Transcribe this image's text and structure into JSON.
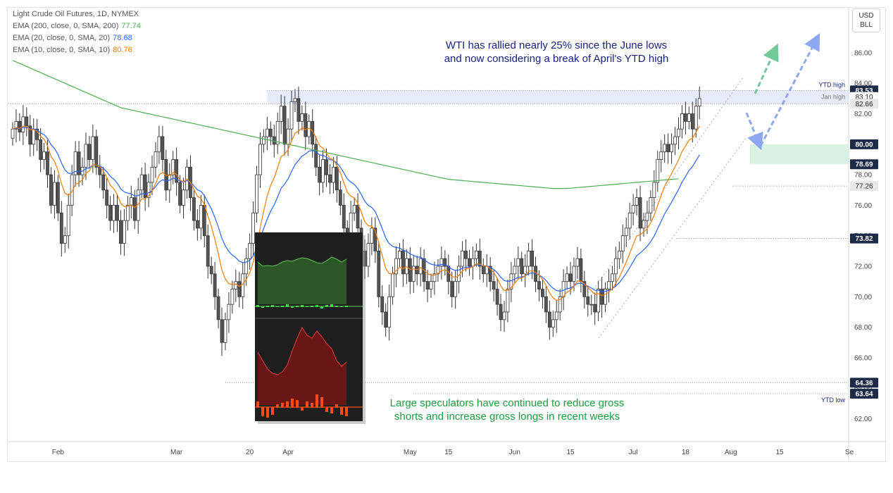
{
  "header": {
    "title": "Light Crude Oil Futures, 1D, NYMEX",
    "ema200": {
      "label": "EMA (200, close, 0, SMA, 200)",
      "value": "77.74",
      "color": "#4caf50"
    },
    "ema20": {
      "label": "EMA (20, close, 0, SMA, 20)",
      "value": "78.68",
      "color": "#2962ff"
    },
    "ema10": {
      "label": "EMA (10, close, 0, SMA, 10)",
      "value": "80.76",
      "color": "#f57c00"
    }
  },
  "currency": {
    "line1": "USD",
    "line2": "BLL"
  },
  "annotations": {
    "top_line1": "WTI has rallied nearly 25% since the June lows",
    "top_line2": "and now considering a break of April's YTD high",
    "bottom_line1": "Large speculators have continued to reduce gross",
    "bottom_line2": "shorts and increase gross longs in recent weeks",
    "ytd_high": "YTD high",
    "jan_high": "Jan high",
    "ytd_low": "YTD low"
  },
  "chart_data": {
    "type": "candlestick",
    "title": "Light Crude Oil Futures, 1D, NYMEX",
    "ylim": [
      60.5,
      89
    ],
    "y_ticks": [
      62,
      64,
      66,
      68,
      70,
      72,
      74,
      76,
      78,
      80,
      82,
      84,
      86
    ],
    "y_tick_labels": [
      "62.00",
      "64.00",
      "66.00",
      "68.00",
      "70.00",
      "72.00",
      "74.00",
      "76.00",
      "78.00",
      "80.00",
      "82.00",
      "84.00",
      "86.00"
    ],
    "x_labels": [
      {
        "label": "Feb",
        "bar": 13
      },
      {
        "label": "Mar",
        "bar": 47
      },
      {
        "label": "20",
        "bar": 68
      },
      {
        "label": "Apr",
        "bar": 79
      },
      {
        "label": "May",
        "bar": 114
      },
      {
        "label": "15",
        "bar": 125
      },
      {
        "label": "Jun",
        "bar": 144
      },
      {
        "label": "15",
        "bar": 160
      },
      {
        "label": "Jul",
        "bar": 178
      },
      {
        "label": "18",
        "bar": 193
      },
      {
        "label": "Aug",
        "bar": 206
      },
      {
        "label": "15",
        "bar": 220
      },
      {
        "label": "Se",
        "bar": 240
      }
    ],
    "price_labels": [
      {
        "text": "83.53",
        "value": 83.53,
        "style": "dark"
      },
      {
        "text": "83.10",
        "value": 83.1,
        "style": "plain"
      },
      {
        "text": "82.66",
        "value": 82.66,
        "style": "grey"
      },
      {
        "text": "80.00",
        "value": 80.0,
        "style": "dark"
      },
      {
        "text": "78.69",
        "value": 78.69,
        "style": "dark"
      },
      {
        "text": "77.26",
        "value": 77.26,
        "style": "grey"
      },
      {
        "text": "73.82",
        "value": 73.82,
        "style": "dark"
      },
      {
        "text": "64.36",
        "value": 64.36,
        "style": "dark"
      },
      {
        "text": "63.64",
        "value": 63.64,
        "style": "dark"
      }
    ],
    "levels": {
      "ytd_high": 83.53,
      "jan_high": 82.66,
      "ytd_low": 63.64,
      "zone": [
        78.69,
        80.0
      ],
      "support_1": 77.26,
      "support_2": 73.82,
      "low_2": 64.36
    },
    "closes": [
      81.0,
      81.5,
      80.8,
      81.8,
      81.2,
      80.0,
      81.0,
      80.3,
      79.0,
      79.5,
      78.0,
      76.0,
      77.5,
      75.5,
      73.5,
      74.0,
      76.0,
      78.0,
      79.5,
      78.0,
      78.5,
      80.0,
      79.0,
      80.5,
      78.5,
      78.0,
      77.0,
      76.0,
      75.0,
      76.0,
      75.0,
      73.5,
      75.0,
      76.0,
      76.5,
      75.0,
      77.0,
      78.0,
      76.5,
      77.5,
      78.5,
      79.5,
      80.5,
      79.0,
      77.0,
      78.0,
      79.0,
      77.5,
      76.0,
      77.0,
      78.5,
      76.5,
      75.0,
      74.5,
      76.0,
      74.0,
      72.0,
      71.5,
      70.0,
      68.5,
      67.0,
      68.5,
      69.5,
      70.5,
      71.0,
      70.0,
      71.5,
      72.5,
      73.5,
      75.5,
      78.0,
      80.0,
      80.5,
      81.0,
      80.5,
      80.0,
      81.5,
      82.5,
      80.0,
      81.0,
      82.8,
      83.0,
      81.5,
      82.0,
      80.5,
      81.5,
      80.0,
      78.5,
      77.5,
      79.0,
      78.0,
      77.5,
      78.5,
      77.0,
      76.0,
      74.5,
      74.0,
      75.5,
      76.0,
      74.5,
      73.0,
      72.0,
      73.5,
      74.5,
      73.0,
      70.0,
      69.0,
      68.0,
      70.0,
      71.5,
      72.5,
      73.0,
      71.5,
      72.5,
      71.0,
      72.0,
      71.5,
      72.5,
      71.0,
      70.5,
      71.0,
      71.5,
      72.0,
      72.5,
      72.0,
      71.0,
      70.0,
      71.0,
      72.0,
      73.0,
      72.5,
      72.0,
      72.5,
      73.0,
      72.0,
      71.5,
      72.0,
      71.0,
      70.5,
      69.5,
      68.5,
      69.0,
      70.5,
      71.5,
      72.0,
      72.5,
      71.5,
      72.0,
      73.0,
      72.0,
      71.0,
      70.5,
      70.0,
      69.0,
      68.0,
      68.5,
      69.0,
      70.0,
      71.0,
      71.5,
      71.0,
      72.0,
      72.5,
      71.0,
      70.0,
      69.5,
      69.5,
      69.0,
      70.5,
      69.5,
      70.5,
      71.0,
      71.5,
      72.5,
      73.0,
      74.0,
      74.5,
      75.5,
      76.0,
      76.5,
      74.5,
      75.0,
      75.5,
      76.5,
      77.5,
      79.0,
      79.5,
      80.0,
      79.5,
      80.0,
      80.5,
      81.0,
      82.0,
      81.5,
      82.0,
      81.0,
      82.5,
      83.0
    ],
    "ema200": [
      85.5,
      85.4,
      85.3,
      85.2,
      85.1,
      85.0,
      84.9,
      84.8,
      84.7,
      84.6,
      84.5,
      84.4,
      84.3,
      84.2,
      84.1,
      84.0,
      83.9,
      83.8,
      83.7,
      83.6,
      83.5,
      83.4,
      83.3,
      83.2,
      83.1,
      83.0,
      82.9,
      82.8,
      82.7,
      82.6,
      82.5,
      82.4,
      82.35,
      82.3,
      82.25,
      82.2,
      82.15,
      82.1,
      82.05,
      82.0,
      81.95,
      81.9,
      81.85,
      81.8,
      81.75,
      81.7,
      81.65,
      81.6,
      81.55,
      81.5,
      81.45,
      81.4,
      81.35,
      81.3,
      81.25,
      81.2,
      81.15,
      81.1,
      81.05,
      81.0,
      80.95,
      80.9,
      80.85,
      80.8,
      80.75,
      80.7,
      80.65,
      80.6,
      80.55,
      80.5,
      80.45,
      80.4,
      80.35,
      80.3,
      80.25,
      80.2,
      80.15,
      80.1,
      80.05,
      80.0,
      79.95,
      79.9,
      79.85,
      79.8,
      79.75,
      79.7,
      79.65,
      79.6,
      79.55,
      79.5,
      79.45,
      79.4,
      79.35,
      79.3,
      79.25,
      79.2,
      79.15,
      79.1,
      79.05,
      79.0,
      78.95,
      78.9,
      78.85,
      78.8,
      78.75,
      78.7,
      78.65,
      78.6,
      78.55,
      78.5,
      78.45,
      78.4,
      78.35,
      78.3,
      78.25,
      78.2,
      78.15,
      78.1,
      78.05,
      78.0,
      77.95,
      77.9,
      77.85,
      77.8,
      77.75,
      77.7,
      77.68,
      77.66,
      77.64,
      77.62,
      77.6,
      77.58,
      77.56,
      77.54,
      77.52,
      77.5,
      77.48,
      77.46,
      77.44,
      77.42,
      77.4,
      77.38,
      77.36,
      77.34,
      77.32,
      77.3,
      77.28,
      77.26,
      77.24,
      77.22,
      77.2,
      77.18,
      77.16,
      77.14,
      77.12,
      77.1,
      77.1,
      77.1,
      77.1,
      77.1,
      77.12,
      77.14,
      77.16,
      77.18,
      77.2,
      77.22,
      77.24,
      77.26,
      77.28,
      77.3,
      77.32,
      77.34,
      77.36,
      77.38,
      77.4,
      77.42,
      77.44,
      77.46,
      77.48,
      77.5,
      77.52,
      77.54,
      77.56,
      77.58,
      77.6,
      77.62,
      77.64,
      77.66,
      77.68,
      77.7,
      77.72,
      77.74
    ]
  }
}
